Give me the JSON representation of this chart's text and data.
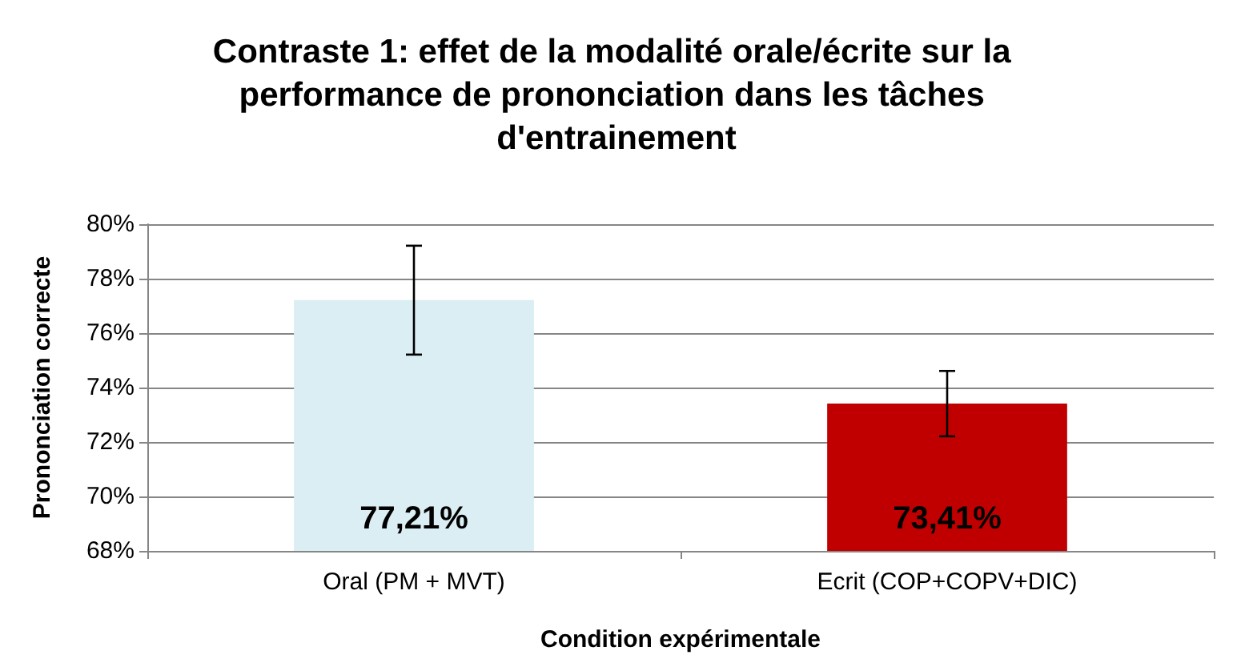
{
  "chart_data": {
    "type": "bar",
    "title": "Contraste 1: effet de la modalité orale/écrite sur la performance de prononciation dans les tâches d'entrainement",
    "xlabel": "Condition expérimentale",
    "ylabel": "Prononciation correcte",
    "categories": [
      "Oral (PM + MVT)",
      "Ecrit (COP+COPV+DIC)"
    ],
    "values": [
      77.21,
      73.41
    ],
    "colors": [
      "#daeef3",
      "#c00000"
    ],
    "errors": [
      2.0,
      1.2
    ],
    "value_labels": [
      "77,21%",
      "73,41%"
    ],
    "ylim": [
      68,
      80
    ],
    "yticks": [
      {
        "value": 68,
        "label": "68%"
      },
      {
        "value": 70,
        "label": "70%"
      },
      {
        "value": 72,
        "label": "72%"
      },
      {
        "value": 74,
        "label": "74%"
      },
      {
        "value": 76,
        "label": "76%"
      },
      {
        "value": 78,
        "label": "78%"
      },
      {
        "value": 80,
        "label": "80%"
      }
    ],
    "grid": "y"
  }
}
